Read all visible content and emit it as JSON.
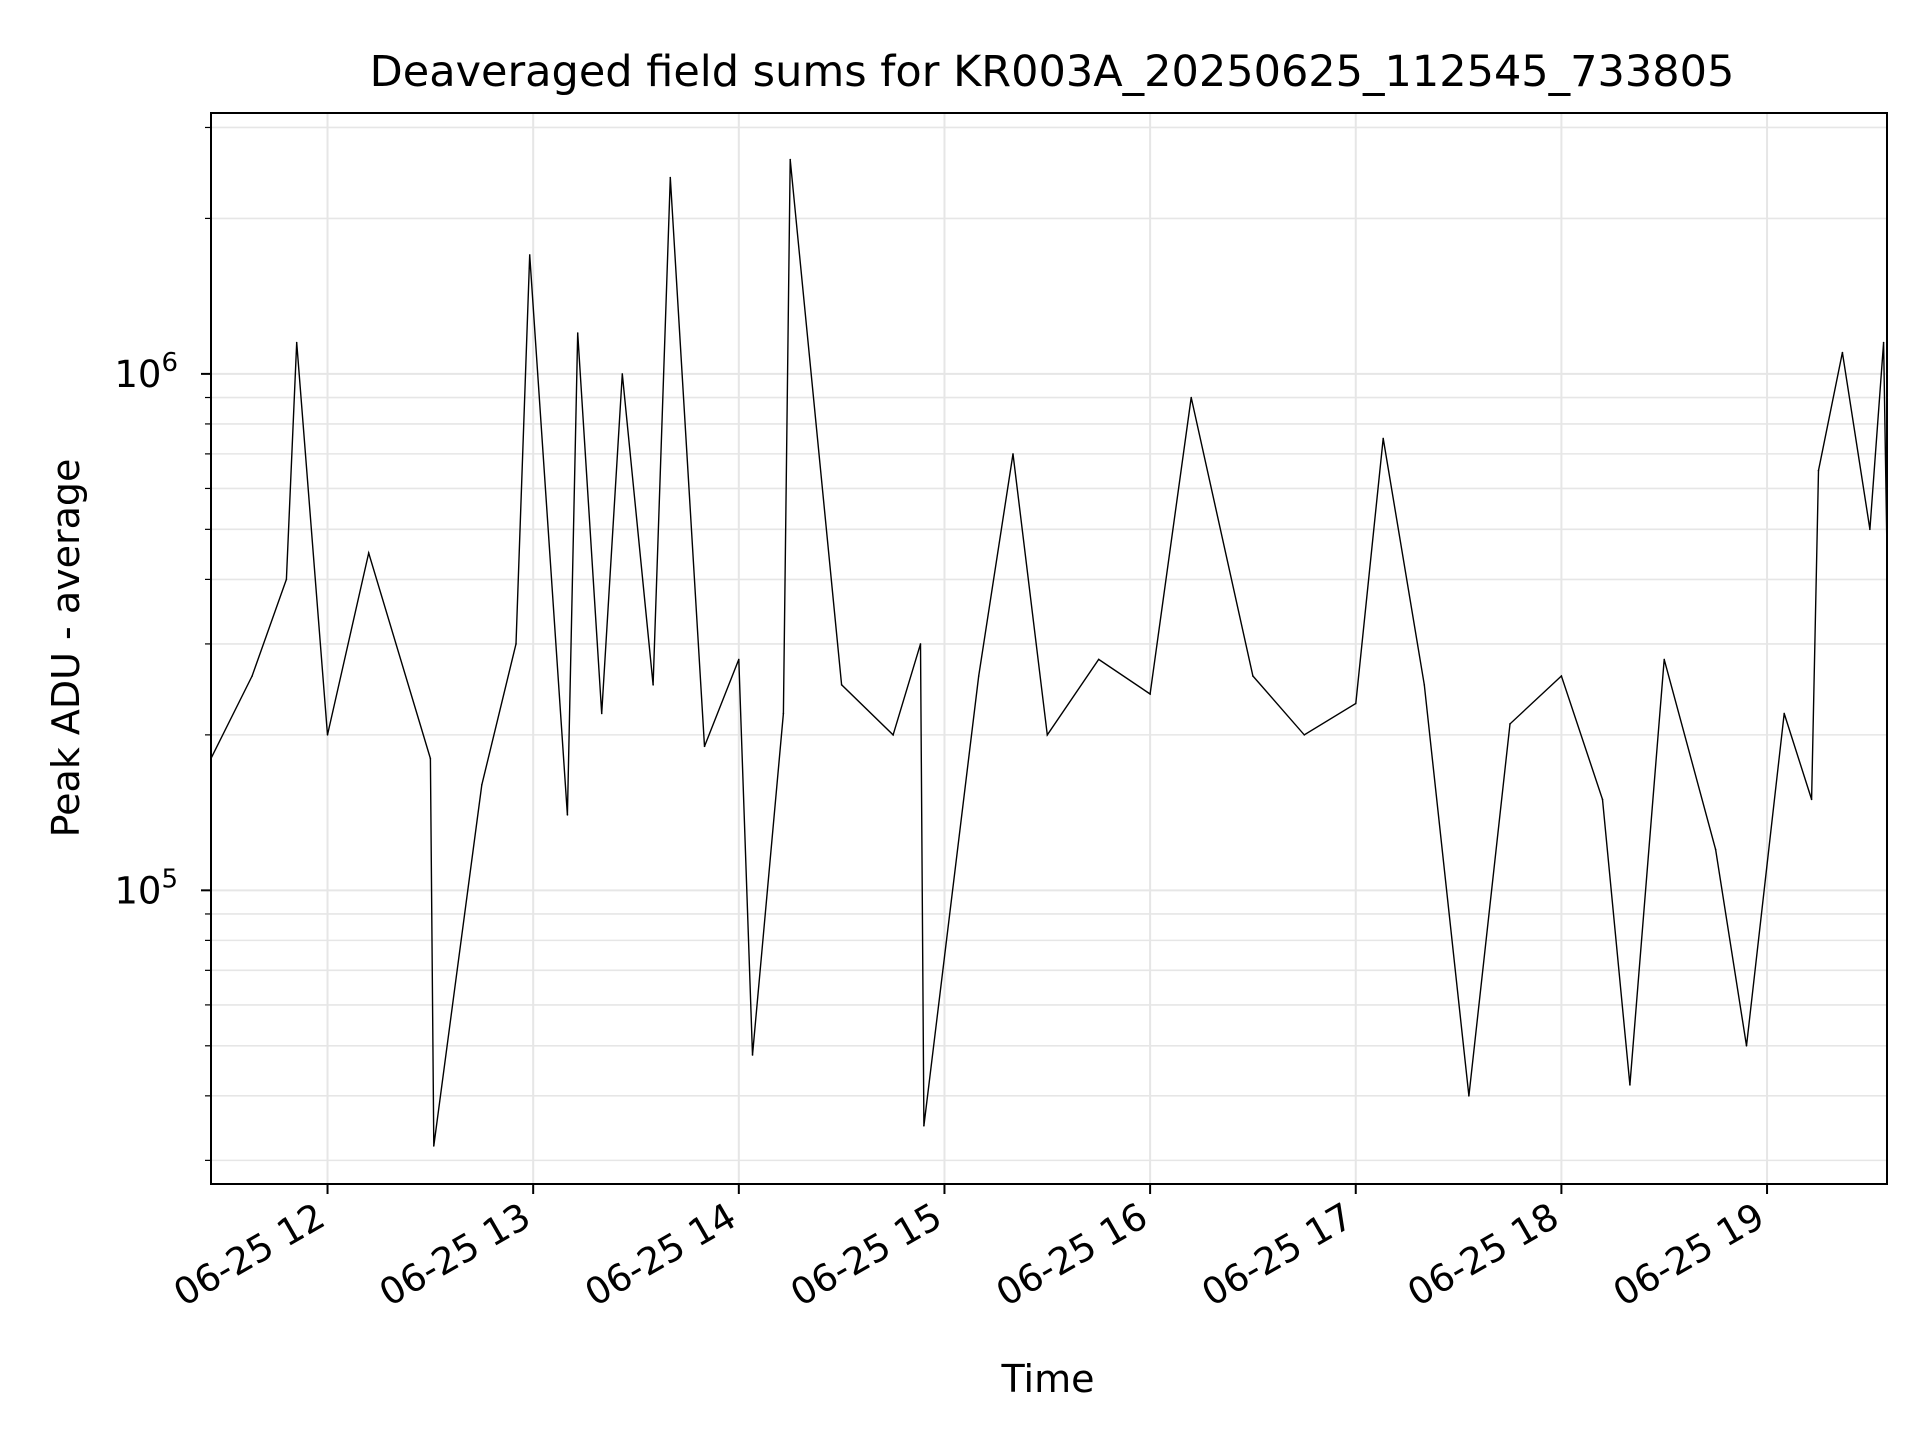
{
  "chart_data": {
    "type": "line",
    "title": "Deaveraged field sums for KR003A_20250625_112545_733805",
    "xlabel": "Time",
    "ylabel": "Peak ADU - average",
    "yscale": "log",
    "x_range": [
      "2025-06-25 11:26",
      "2025-06-25 19:35"
    ],
    "ylim": [
      27000,
      3200000
    ],
    "x_ticks": [
      {
        "value": "2025-06-25 12:00",
        "label": "06-25 12"
      },
      {
        "value": "2025-06-25 13:00",
        "label": "06-25 13"
      },
      {
        "value": "2025-06-25 14:00",
        "label": "06-25 14"
      },
      {
        "value": "2025-06-25 15:00",
        "label": "06-25 15"
      },
      {
        "value": "2025-06-25 16:00",
        "label": "06-25 16"
      },
      {
        "value": "2025-06-25 17:00",
        "label": "06-25 17"
      },
      {
        "value": "2025-06-25 18:00",
        "label": "06-25 18"
      },
      {
        "value": "2025-06-25 19:00",
        "label": "06-25 19"
      }
    ],
    "y_ticks": [
      {
        "value": 100000,
        "base": "10",
        "exp": "5"
      },
      {
        "value": 1000000,
        "base": "10",
        "exp": "6"
      }
    ],
    "grid": true,
    "line_color": "#000000",
    "grid_color": "#e6e6e6",
    "series": [
      {
        "points": [
          [
            "2025-06-25 11:26",
            180000
          ],
          [
            "2025-06-25 11:38",
            260000
          ],
          [
            "2025-06-25 11:48",
            400000
          ],
          [
            "2025-06-25 11:51",
            1150000
          ],
          [
            "2025-06-25 12:00",
            200000
          ],
          [
            "2025-06-25 12:12",
            450000
          ],
          [
            "2025-06-25 12:30",
            180000
          ],
          [
            "2025-06-25 12:31",
            32000
          ],
          [
            "2025-06-25 12:45",
            160000
          ],
          [
            "2025-06-25 12:55",
            300000
          ],
          [
            "2025-06-25 12:59",
            1700000
          ],
          [
            "2025-06-25 13:10",
            140000
          ],
          [
            "2025-06-25 13:13",
            1200000
          ],
          [
            "2025-06-25 13:20",
            220000
          ],
          [
            "2025-06-25 13:26",
            1000000
          ],
          [
            "2025-06-25 13:35",
            250000
          ],
          [
            "2025-06-25 13:40",
            2400000
          ],
          [
            "2025-06-25 13:50",
            190000
          ],
          [
            "2025-06-25 14:00",
            280000
          ],
          [
            "2025-06-25 14:04",
            48000
          ],
          [
            "2025-06-25 14:13",
            220000
          ],
          [
            "2025-06-25 14:15",
            2600000
          ],
          [
            "2025-06-25 14:30",
            250000
          ],
          [
            "2025-06-25 14:45",
            200000
          ],
          [
            "2025-06-25 14:53",
            300000
          ],
          [
            "2025-06-25 14:54",
            35000
          ],
          [
            "2025-06-25 15:10",
            260000
          ],
          [
            "2025-06-25 15:20",
            700000
          ],
          [
            "2025-06-25 15:30",
            200000
          ],
          [
            "2025-06-25 15:45",
            280000
          ],
          [
            "2025-06-25 16:00",
            240000
          ],
          [
            "2025-06-25 16:12",
            900000
          ],
          [
            "2025-06-25 16:30",
            260000
          ],
          [
            "2025-06-25 16:45",
            200000
          ],
          [
            "2025-06-25 17:00",
            230000
          ],
          [
            "2025-06-25 17:08",
            750000
          ],
          [
            "2025-06-25 17:20",
            250000
          ],
          [
            "2025-06-25 17:33",
            40000
          ],
          [
            "2025-06-25 17:45",
            210000
          ],
          [
            "2025-06-25 18:00",
            260000
          ],
          [
            "2025-06-25 18:12",
            150000
          ],
          [
            "2025-06-25 18:20",
            42000
          ],
          [
            "2025-06-25 18:30",
            280000
          ],
          [
            "2025-06-25 18:45",
            120000
          ],
          [
            "2025-06-25 18:54",
            50000
          ],
          [
            "2025-06-25 19:05",
            220000
          ],
          [
            "2025-06-25 19:13",
            150000
          ],
          [
            "2025-06-25 19:15",
            650000
          ],
          [
            "2025-06-25 19:22",
            1100000
          ],
          [
            "2025-06-25 19:30",
            500000
          ],
          [
            "2025-06-25 19:34",
            1150000
          ],
          [
            "2025-06-25 19:35",
            450000
          ]
        ]
      }
    ]
  }
}
